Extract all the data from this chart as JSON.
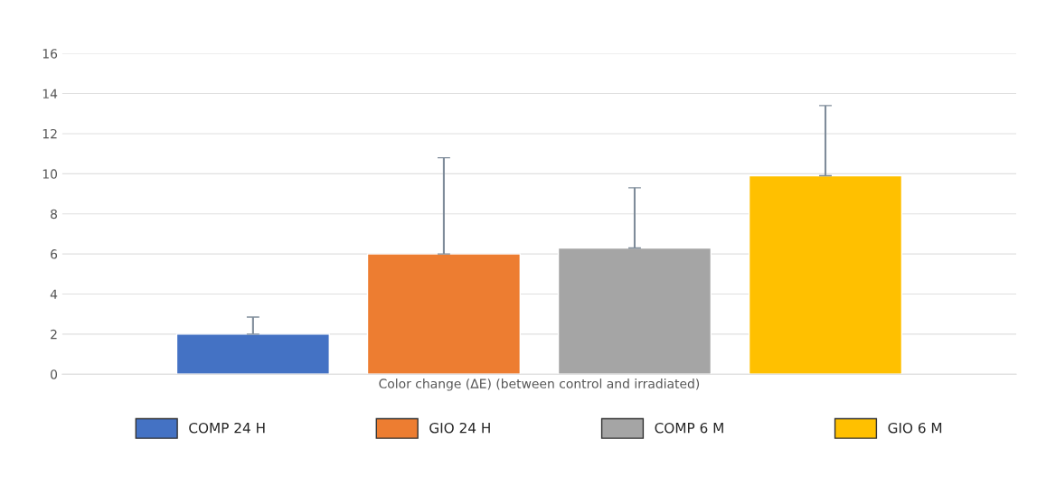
{
  "chart_data": {
    "type": "bar",
    "categories": [
      "Color change (ΔE) (between control and irradiated)"
    ],
    "series": [
      {
        "name": "COMP 24 H",
        "color": "#4472c4",
        "values": [
          2.0
        ],
        "errors": [
          [
            2.0,
            2.85
          ]
        ]
      },
      {
        "name": "GIO 24 H",
        "color": "#ed7d31",
        "values": [
          6.0
        ],
        "errors": [
          [
            6.0,
            10.8
          ]
        ]
      },
      {
        "name": "COMP 6 M",
        "color": "#a5a5a5",
        "values": [
          6.3
        ],
        "errors": [
          [
            6.3,
            9.3
          ]
        ]
      },
      {
        "name": "GIO 6 M",
        "color": "#ffc000",
        "values": [
          9.9
        ],
        "errors": [
          [
            9.9,
            13.4
          ]
        ]
      }
    ],
    "ylim": [
      0,
      16
    ],
    "yticks": [
      0,
      2,
      4,
      6,
      8,
      10,
      12,
      14,
      16
    ],
    "grid": "y",
    "legend": "bottom"
  }
}
